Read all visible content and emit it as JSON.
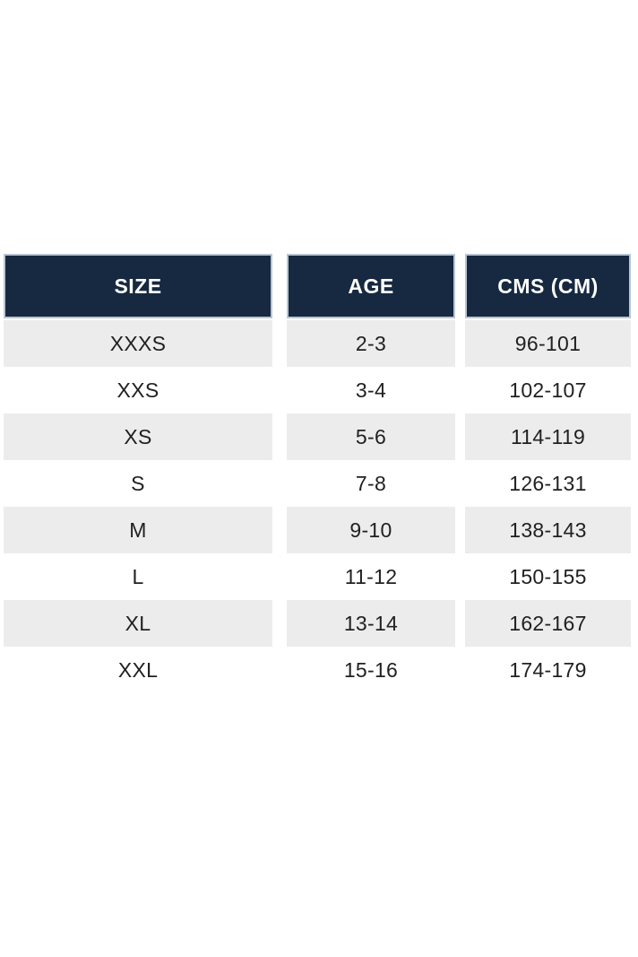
{
  "chart_data": {
    "type": "table",
    "columns": [
      "SIZE",
      "AGE",
      "CMS (CM)"
    ],
    "rows": [
      [
        "XXXS",
        "2-3",
        "96-101"
      ],
      [
        "XXS",
        "3-4",
        "102-107"
      ],
      [
        "XS",
        "5-6",
        "114-119"
      ],
      [
        "S",
        "7-8",
        "126-131"
      ],
      [
        "M",
        "9-10",
        "138-143"
      ],
      [
        "L",
        "11-12",
        "150-155"
      ],
      [
        "XL",
        "13-14",
        "162-167"
      ],
      [
        "XXL",
        "15-16",
        "174-179"
      ]
    ],
    "layout": {
      "legend": "none",
      "grid": "off",
      "row_striping": "alternating starting with shaded first row"
    }
  },
  "colors": {
    "header_bg": "#172940",
    "header_text": "#ffffff",
    "header_border": "#b9c5d3",
    "row_alt_bg": "#ececec",
    "row_bg": "#ffffff",
    "body_text": "#212121",
    "page_bg": "#ffffff"
  }
}
